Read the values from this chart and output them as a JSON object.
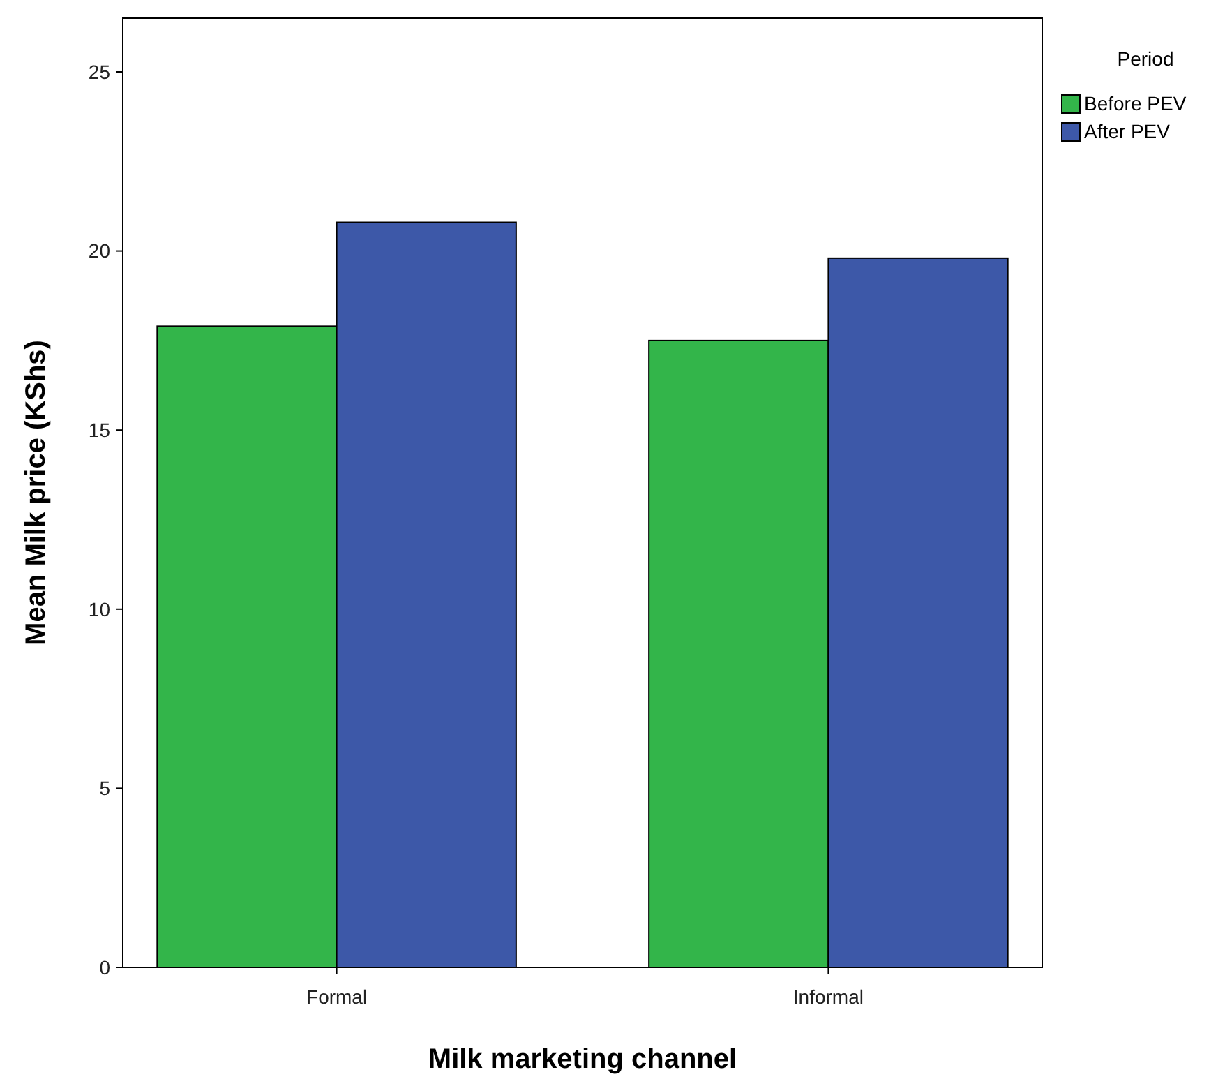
{
  "chart_data": {
    "type": "bar",
    "xlabel": "Milk marketing channel",
    "ylabel": "Mean Milk price (KShs)",
    "legend_title": "Period",
    "categories": [
      "Formal",
      "Informal"
    ],
    "series": [
      {
        "name": "Before PEV",
        "color": "#33b54a",
        "values": [
          17.9,
          17.5
        ]
      },
      {
        "name": "After PEV",
        "color": "#3d58a8",
        "values": [
          20.8,
          19.8
        ]
      }
    ],
    "ylim": [
      0,
      26.5
    ],
    "yticks": [
      0,
      5,
      10,
      15,
      20,
      25
    ],
    "grid": false,
    "legend": "top right"
  }
}
